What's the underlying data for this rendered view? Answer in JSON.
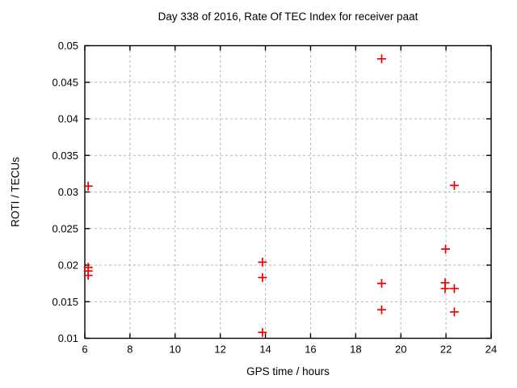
{
  "chart_data": {
    "type": "scatter",
    "title": "Day 338 of 2016, Rate Of TEC Index for receiver paat",
    "xlabel": "GPS time / hours",
    "ylabel": "ROTI / TECUs",
    "xlim": [
      6,
      24
    ],
    "ylim": [
      0.01,
      0.05
    ],
    "xticks": [
      6,
      8,
      10,
      12,
      14,
      16,
      18,
      20,
      22,
      24
    ],
    "yticks": [
      0.01,
      0.015,
      0.02,
      0.025,
      0.03,
      0.035,
      0.04,
      0.045,
      0.05
    ],
    "grid": true,
    "legend_position": "none",
    "marker_shape": "plus",
    "series": [
      {
        "name": "ROTI",
        "points": [
          {
            "x": 6.15,
            "y": 0.0308
          },
          {
            "x": 6.15,
            "y": 0.0197
          },
          {
            "x": 6.15,
            "y": 0.0192
          },
          {
            "x": 6.15,
            "y": 0.0186
          },
          {
            "x": 13.87,
            "y": 0.0204
          },
          {
            "x": 13.87,
            "y": 0.0183
          },
          {
            "x": 13.87,
            "y": 0.0108
          },
          {
            "x": 19.15,
            "y": 0.0482
          },
          {
            "x": 19.15,
            "y": 0.0175
          },
          {
            "x": 19.15,
            "y": 0.0139
          },
          {
            "x": 21.98,
            "y": 0.0222
          },
          {
            "x": 21.96,
            "y": 0.0176
          },
          {
            "x": 21.96,
            "y": 0.0168
          },
          {
            "x": 22.37,
            "y": 0.0309
          },
          {
            "x": 22.37,
            "y": 0.0168
          },
          {
            "x": 22.37,
            "y": 0.0136
          }
        ]
      }
    ]
  },
  "colors": {
    "marker": "#ee0000",
    "grid": "#b3b3b3",
    "axis": "#000000",
    "background": "#ffffff",
    "text": "#000000"
  }
}
